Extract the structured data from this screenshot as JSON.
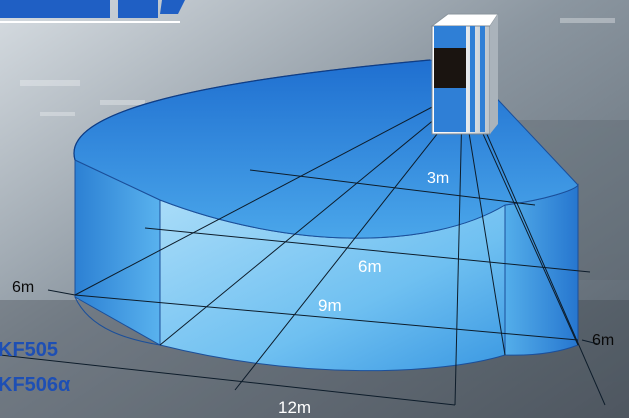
{
  "labels": {
    "left_height": "6m",
    "right_height": "6m",
    "range_3": "3m",
    "range_6": "6m",
    "range_9": "9m",
    "range_12": "12m"
  },
  "models": [
    "KF505",
    "KF506α"
  ],
  "colors": {
    "beam_top": "#2f7fd6",
    "beam_side": "#3f9be6",
    "beam_light": "#8fd0f6",
    "model_text": "#1e4fb4",
    "label_text": "#ffffff",
    "sensor_body": "#f2f4f7",
    "sensor_window": "#1a1410"
  }
}
